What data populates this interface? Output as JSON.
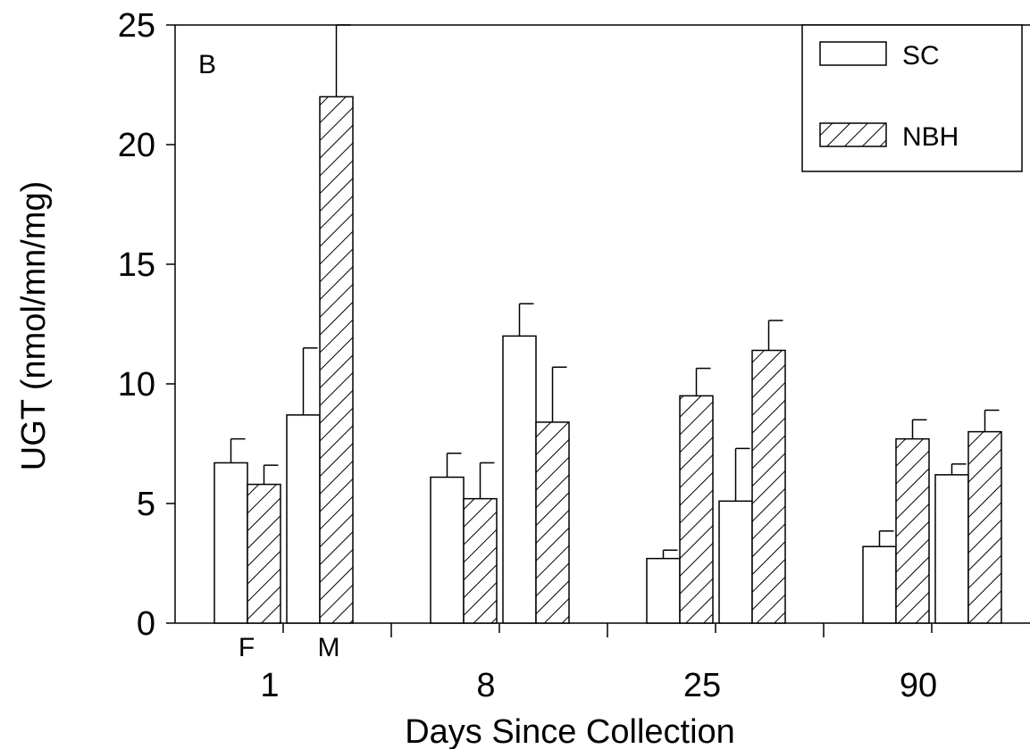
{
  "chart_data": {
    "type": "bar",
    "panel_label": "B",
    "xlabel": "Days Since Collection",
    "ylabel": "UGT (nmol/mn/mg)",
    "ylim": [
      0,
      25
    ],
    "yticks": [
      0,
      5,
      10,
      15,
      20,
      25
    ],
    "grid": false,
    "legend_position": "top-right",
    "categories": [
      "1",
      "8",
      "25",
      "90"
    ],
    "subgroups": [
      "F",
      "M"
    ],
    "subgroup_labels_shown_for": [
      "1"
    ],
    "series": [
      {
        "name": "SC",
        "fill": "open",
        "values": {
          "F": [
            6.7,
            6.1,
            2.7,
            3.2
          ],
          "M": [
            8.7,
            12.0,
            5.1,
            6.2
          ]
        },
        "error": {
          "F": [
            1.0,
            1.0,
            0.35,
            0.65
          ],
          "M": [
            2.8,
            1.35,
            2.2,
            0.45
          ]
        }
      },
      {
        "name": "NBH",
        "fill": "hatched",
        "values": {
          "F": [
            5.8,
            5.2,
            9.5,
            7.7
          ],
          "M": [
            22.0,
            8.4,
            11.4,
            8.0
          ]
        },
        "error": {
          "F": [
            0.8,
            1.5,
            1.15,
            0.8
          ],
          "M": [
            3.0,
            2.3,
            1.25,
            0.9
          ]
        }
      }
    ]
  },
  "colors": {
    "axis": "#000000",
    "bar_fill": "#ffffff",
    "hatch": "#000000"
  }
}
